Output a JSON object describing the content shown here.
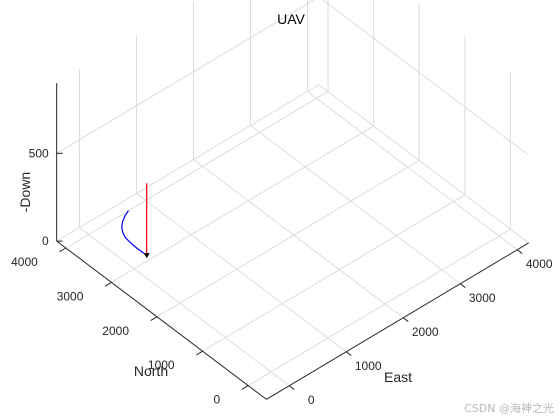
{
  "chart_data": {
    "type": "line",
    "title": "UAV",
    "xlabel": "North",
    "ylabel": "East",
    "zlabel": "-Down",
    "x_ticks": [
      "0",
      "1000",
      "2000",
      "3000",
      "4000"
    ],
    "y_ticks": [
      "0",
      "1000",
      "2000",
      "3000",
      "4000"
    ],
    "z_ticks": [
      "0",
      "500"
    ],
    "xlim": [
      -400,
      4200
    ],
    "ylim": [
      -400,
      4200
    ],
    "zlim": [
      0,
      900
    ],
    "grid": true,
    "series": [
      {
        "color": "#0000ff",
        "points": [
          [
            4000,
            700,
            0
          ],
          [
            3950,
            600,
            0
          ],
          [
            3880,
            500,
            0
          ],
          [
            3800,
            420,
            0
          ],
          [
            3700,
            360,
            0
          ],
          [
            3600,
            320,
            0
          ],
          [
            3450,
            300,
            0
          ],
          [
            3300,
            295,
            0
          ],
          [
            3100,
            300,
            0
          ]
        ]
      },
      {
        "color": "#ff0000",
        "points": [
          [
            3100,
            300,
            0
          ],
          [
            3100,
            300,
            410
          ]
        ]
      }
    ],
    "aircraft_marker": [
      3100,
      300,
      0
    ]
  },
  "watermark": "CSDN @海神之光",
  "colors": {
    "axis": "#262626",
    "grid": "#dcdcdc"
  }
}
